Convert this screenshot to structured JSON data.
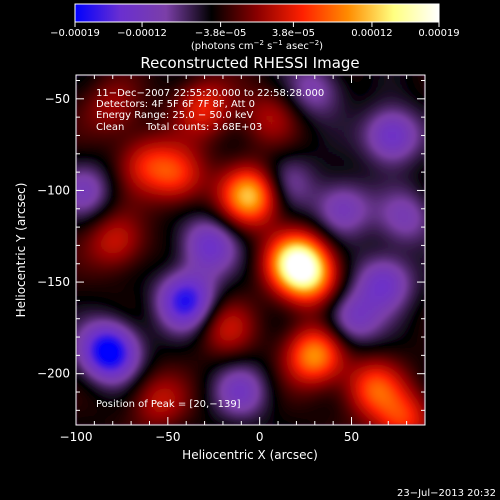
{
  "colorbar": {
    "tick_values": [
      -0.00019,
      -0.00012,
      -3.8e-05,
      3.8e-05,
      0.00012,
      0.00019
    ],
    "tick_labels": [
      "−0.00019",
      "−0.00012",
      "−3.8e−05",
      "3.8e−05",
      "0.00012",
      "0.00019"
    ],
    "range": [
      -0.00019,
      0.00019
    ],
    "unit_main": "(photons cm",
    "unit_exp1": "−2",
    "unit_mid": " s",
    "unit_exp2": "−1",
    "unit_after": " asec",
    "unit_exp3": "−2",
    "unit_end": ")",
    "colors": [
      "#0000ff",
      "#6a2fd0",
      "#7b3fa8",
      "#000000",
      "#8a0000",
      "#ff2000",
      "#ff8c00",
      "#ffff80",
      "#ffffff"
    ]
  },
  "chart_data": {
    "type": "heatmap",
    "title": "Reconstructed RHESSI Image",
    "xlabel": "Heliocentric X (arcsec)",
    "ylabel": "Heliocentric Y (arcsec)",
    "xlim": [
      -100,
      90
    ],
    "ylim": [
      -228,
      -37
    ],
    "x_ticks": [
      -100,
      -50,
      0,
      50
    ],
    "y_ticks": [
      -50,
      -100,
      -150,
      -200
    ],
    "x_tick_labels": [
      "−100",
      "−50",
      "0",
      "50"
    ],
    "y_tick_labels": [
      "−50",
      "−100",
      "−150",
      "−200"
    ],
    "peak_position": [
      20,
      -139
    ],
    "blobs": [
      {
        "x": 20,
        "y": -139,
        "value": 0.00019
      },
      {
        "x": -5,
        "y": -103,
        "value": 0.00016
      },
      {
        "x": 30,
        "y": -190,
        "value": 0.00014
      },
      {
        "x": 28,
        "y": -148,
        "value": 0.00011
      },
      {
        "x": -45,
        "y": -92,
        "value": 9e-05
      },
      {
        "x": -30,
        "y": -55,
        "value": 8e-05
      },
      {
        "x": -78,
        "y": -128,
        "value": 7e-05
      },
      {
        "x": -62,
        "y": -85,
        "value": 7e-05
      },
      {
        "x": 62,
        "y": -208,
        "value": 0.0001
      },
      {
        "x": 78,
        "y": -225,
        "value": 9e-05
      },
      {
        "x": -18,
        "y": -175,
        "value": 6e-05
      },
      {
        "x": -55,
        "y": -215,
        "value": 6e-05
      },
      {
        "x": -80,
        "y": -55,
        "value": 5e-05
      },
      {
        "x": 5,
        "y": -60,
        "value": 5e-05
      },
      {
        "x": 45,
        "y": -110,
        "value": -8e-05
      },
      {
        "x": -82,
        "y": -188,
        "value": -0.00016
      },
      {
        "x": -40,
        "y": -160,
        "value": -0.00013
      },
      {
        "x": -28,
        "y": -130,
        "value": -9e-05
      },
      {
        "x": 72,
        "y": -70,
        "value": -0.0001
      },
      {
        "x": 68,
        "y": -150,
        "value": -9e-05
      },
      {
        "x": 50,
        "y": -170,
        "value": -8e-05
      },
      {
        "x": -10,
        "y": -210,
        "value": -7e-05
      },
      {
        "x": -95,
        "y": -100,
        "value": -6e-05
      },
      {
        "x": 80,
        "y": -115,
        "value": -6e-05
      },
      {
        "x": 15,
        "y": -95,
        "value": -5e-05
      },
      {
        "x": 30,
        "y": -45,
        "value": -6e-05
      }
    ]
  },
  "annotations": {
    "time_range": "11−Dec−2007 22:55:20.000 to 22:58:28.000",
    "detectors": "Detectors: 4F 5F 6F 7F 8F, Att 0",
    "energy": "Energy Range: 25.0 − 50.0 keV",
    "clean_label": "Clean",
    "total_counts": "Total counts: 3.68E+03",
    "peak_label": "Position of Peak = [20,−139]"
  },
  "footer": {
    "timestamp": "23−Jul−2013 20:32"
  }
}
